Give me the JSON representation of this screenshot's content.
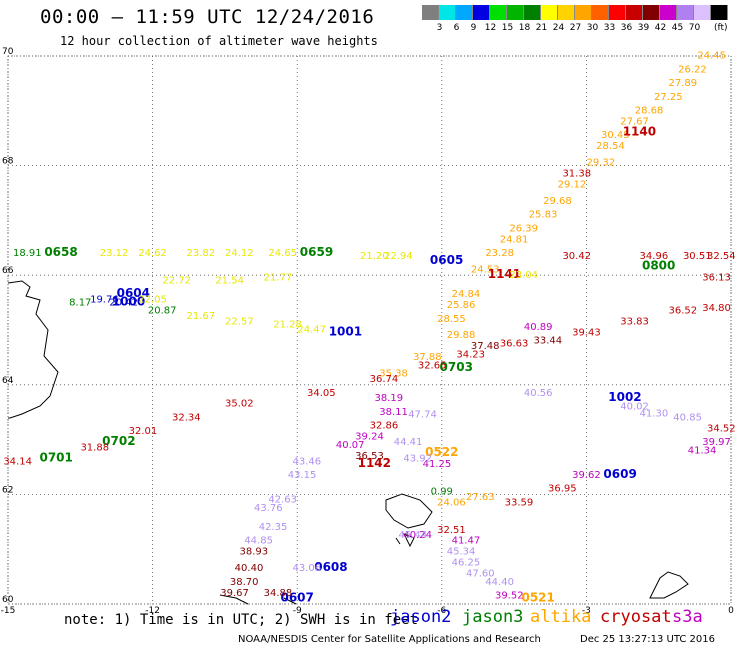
{
  "header": {
    "title": "00:00 – 11:59 UTC 12/24/2016",
    "subtitle": "12 hour collection of altimeter wave heights"
  },
  "colorbar": {
    "colors": [
      "#7f7f7f",
      "#00e5e5",
      "#00a8ff",
      "#0000e0",
      "#00e000",
      "#00b400",
      "#008000",
      "#ffff00",
      "#ffd200",
      "#ffa500",
      "#ff6000",
      "#ff0000",
      "#c80000",
      "#800000",
      "#cc00cc",
      "#b080f0",
      "#ddc0ff",
      "#000000"
    ],
    "labels": [
      "3",
      "6",
      "9",
      "12",
      "15",
      "18",
      "21",
      "24",
      "27",
      "30",
      "33",
      "36",
      "39",
      "42",
      "45",
      "70"
    ],
    "units": "(ft)"
  },
  "chart_data": {
    "type": "scatter",
    "x_axis": {
      "ticks": [
        "-15",
        "-12",
        "-9",
        "-6",
        "-3",
        "0"
      ],
      "range": [
        -15,
        0
      ]
    },
    "y_axis": {
      "ticks": [
        "60",
        "62",
        "64",
        "66",
        "68",
        "70"
      ],
      "range": [
        60,
        70
      ]
    },
    "grid": true,
    "legend": "bottom",
    "series": [
      {
        "name": "jason2",
        "color": "#0000d0",
        "points": [
          {
            "lon": -13.0,
            "lat": 65.5,
            "v": "19.76"
          },
          {
            "lon": -12.6,
            "lat": 65.45,
            "v": "20.42"
          },
          {
            "lon": -12.4,
            "lat": 65.6,
            "v": "0604"
          },
          {
            "lon": -12.5,
            "lat": 65.45,
            "v": "1000"
          },
          {
            "lon": -8.0,
            "lat": 64.9,
            "v": "1001"
          },
          {
            "lon": -5.9,
            "lat": 66.2,
            "v": "0605"
          },
          {
            "lon": -2.2,
            "lat": 63.7,
            "v": "1002"
          },
          {
            "lon": -2.3,
            "lat": 62.3,
            "v": "0609"
          },
          {
            "lon": -8.3,
            "lat": 60.6,
            "v": "0608"
          },
          {
            "lon": -9.0,
            "lat": 60.05,
            "v": "0607"
          }
        ]
      },
      {
        "name": "jason3",
        "color": "#008000",
        "points": [
          {
            "lon": -14.6,
            "lat": 66.35,
            "v": "18.91"
          },
          {
            "lon": -13.9,
            "lat": 66.35,
            "v": "0658"
          },
          {
            "lon": -8.6,
            "lat": 66.35,
            "v": "0659"
          },
          {
            "lon": -11.8,
            "lat": 65.3,
            "v": "20.87"
          },
          {
            "lon": -13.5,
            "lat": 65.45,
            "v": "8.17"
          },
          {
            "lon": -1.5,
            "lat": 66.1,
            "v": "0800"
          },
          {
            "lon": -5.7,
            "lat": 64.25,
            "v": "0703"
          },
          {
            "lon": -12.7,
            "lat": 62.9,
            "v": "0702"
          },
          {
            "lon": -14.0,
            "lat": 62.6,
            "v": "0701"
          },
          {
            "lon": -6.0,
            "lat": 62.0,
            "v": "0.99"
          }
        ]
      },
      {
        "name": "altika",
        "color": "#ffa500",
        "points": [
          {
            "lon": -0.4,
            "lat": 69.95,
            "v": "24.45"
          },
          {
            "lon": -0.8,
            "lat": 69.7,
            "v": "26.22"
          },
          {
            "lon": -1.0,
            "lat": 69.45,
            "v": "27.89"
          },
          {
            "lon": -1.3,
            "lat": 69.2,
            "v": "27.25"
          },
          {
            "lon": -1.7,
            "lat": 68.95,
            "v": "28.68"
          },
          {
            "lon": -2.0,
            "lat": 68.75,
            "v": "27.67"
          },
          {
            "lon": -2.4,
            "lat": 68.5,
            "v": "30.45"
          },
          {
            "lon": -2.5,
            "lat": 68.3,
            "v": "28.54"
          },
          {
            "lon": -2.7,
            "lat": 68.0,
            "v": "29.32"
          },
          {
            "lon": -3.3,
            "lat": 67.6,
            "v": "29.12"
          },
          {
            "lon": -3.6,
            "lat": 67.3,
            "v": "29.68"
          },
          {
            "lon": -3.9,
            "lat": 67.05,
            "v": "25.83"
          },
          {
            "lon": -4.3,
            "lat": 66.8,
            "v": "26.39"
          },
          {
            "lon": -4.5,
            "lat": 66.6,
            "v": "24.81"
          },
          {
            "lon": -4.8,
            "lat": 66.35,
            "v": "23.28"
          },
          {
            "lon": -5.1,
            "lat": 66.05,
            "v": "24.53"
          },
          {
            "lon": -5.5,
            "lat": 65.6,
            "v": "24.84"
          },
          {
            "lon": -5.6,
            "lat": 65.4,
            "v": "25.86"
          },
          {
            "lon": -5.8,
            "lat": 65.15,
            "v": "28.55"
          },
          {
            "lon": -5.6,
            "lat": 64.85,
            "v": "29.88"
          },
          {
            "lon": -6.3,
            "lat": 64.45,
            "v": "37.88"
          },
          {
            "lon": -7.0,
            "lat": 64.15,
            "v": "35.38"
          },
          {
            "lon": -6.0,
            "lat": 62.7,
            "v": "0522"
          },
          {
            "lon": -5.8,
            "lat": 61.8,
            "v": "24.06"
          },
          {
            "lon": -5.2,
            "lat": 61.9,
            "v": "27.63"
          },
          {
            "lon": -4.0,
            "lat": 60.05,
            "v": "0521"
          }
        ]
      },
      {
        "name": "cryosat",
        "color": "#c00000",
        "points": [
          {
            "lon": -1.9,
            "lat": 68.55,
            "v": "1140"
          },
          {
            "lon": -3.2,
            "lat": 67.8,
            "v": "31.38"
          },
          {
            "lon": -4.7,
            "lat": 65.95,
            "v": "1141"
          },
          {
            "lon": -3.2,
            "lat": 66.3,
            "v": "30.42"
          },
          {
            "lon": -1.6,
            "lat": 66.3,
            "v": "34.96"
          },
          {
            "lon": -0.7,
            "lat": 66.3,
            "v": "30.51"
          },
          {
            "lon": -0.2,
            "lat": 66.3,
            "v": "32.54"
          },
          {
            "lon": -0.3,
            "lat": 65.9,
            "v": "36.13"
          },
          {
            "lon": -0.3,
            "lat": 65.35,
            "v": "34.80"
          },
          {
            "lon": -1.0,
            "lat": 65.3,
            "v": "36.52"
          },
          {
            "lon": -2.0,
            "lat": 65.1,
            "v": "33.83"
          },
          {
            "lon": -3.0,
            "lat": 64.9,
            "v": "39.43"
          },
          {
            "lon": -4.5,
            "lat": 64.7,
            "v": "36.63"
          },
          {
            "lon": -5.4,
            "lat": 64.5,
            "v": "34.23"
          },
          {
            "lon": -6.2,
            "lat": 64.3,
            "v": "32.65"
          },
          {
            "lon": -7.2,
            "lat": 64.05,
            "v": "36.74"
          },
          {
            "lon": -8.5,
            "lat": 63.8,
            "v": "34.05"
          },
          {
            "lon": -10.2,
            "lat": 63.6,
            "v": "35.02"
          },
          {
            "lon": -11.3,
            "lat": 63.35,
            "v": "32.34"
          },
          {
            "lon": -12.2,
            "lat": 63.1,
            "v": "32.01"
          },
          {
            "lon": -13.2,
            "lat": 62.8,
            "v": "31.88"
          },
          {
            "lon": -14.8,
            "lat": 62.55,
            "v": "34.14"
          },
          {
            "lon": -7.2,
            "lat": 63.2,
            "v": "32.86"
          },
          {
            "lon": -7.4,
            "lat": 62.5,
            "v": "1142"
          },
          {
            "lon": -3.5,
            "lat": 62.05,
            "v": "36.95"
          },
          {
            "lon": -4.4,
            "lat": 61.8,
            "v": "33.59"
          },
          {
            "lon": -5.8,
            "lat": 61.3,
            "v": "32.51"
          },
          {
            "lon": -0.2,
            "lat": 63.15,
            "v": "34.52"
          }
        ]
      },
      {
        "name": "s3a",
        "color": "#c000c0",
        "points": [
          {
            "lon": -7.1,
            "lat": 63.7,
            "v": "38.19"
          },
          {
            "lon": -7.0,
            "lat": 63.45,
            "v": "38.11"
          },
          {
            "lon": -7.5,
            "lat": 63.0,
            "v": "39.24"
          },
          {
            "lon": -7.9,
            "lat": 62.85,
            "v": "40.07"
          },
          {
            "lon": -5.5,
            "lat": 61.1,
            "v": "41.47"
          },
          {
            "lon": -6.1,
            "lat": 62.5,
            "v": "41.25"
          },
          {
            "lon": -6.5,
            "lat": 61.2,
            "v": "40.24"
          },
          {
            "lon": -4.6,
            "lat": 60.1,
            "v": "39.52"
          },
          {
            "lon": -3.0,
            "lat": 62.3,
            "v": "39.62"
          },
          {
            "lon": -0.6,
            "lat": 62.75,
            "v": "41.34"
          },
          {
            "lon": -0.3,
            "lat": 62.9,
            "v": "39.97"
          },
          {
            "lon": -4.0,
            "lat": 65.0,
            "v": "40.89"
          }
        ]
      },
      {
        "name": "",
        "color": "#b090f0",
        "points": [
          {
            "lon": -2.0,
            "lat": 63.55,
            "v": "40.02"
          },
          {
            "lon": -1.6,
            "lat": 63.42,
            "v": "41.30"
          },
          {
            "lon": -0.9,
            "lat": 63.35,
            "v": "40.85"
          },
          {
            "lon": -4.0,
            "lat": 63.8,
            "v": "40.56"
          },
          {
            "lon": -6.4,
            "lat": 63.4,
            "v": "47.74"
          },
          {
            "lon": -6.7,
            "lat": 62.9,
            "v": "44.41"
          },
          {
            "lon": -6.5,
            "lat": 62.6,
            "v": "43.92"
          },
          {
            "lon": -8.8,
            "lat": 62.55,
            "v": "43.46"
          },
          {
            "lon": -8.9,
            "lat": 62.3,
            "v": "43.15"
          },
          {
            "lon": -9.3,
            "lat": 61.85,
            "v": "42.63"
          },
          {
            "lon": -9.6,
            "lat": 61.7,
            "v": "43.76"
          },
          {
            "lon": -9.5,
            "lat": 61.35,
            "v": "42.35"
          },
          {
            "lon": -9.8,
            "lat": 61.1,
            "v": "44.85"
          },
          {
            "lon": -8.8,
            "lat": 60.6,
            "v": "43.06"
          },
          {
            "lon": -5.6,
            "lat": 60.9,
            "v": "45.34"
          },
          {
            "lon": -5.5,
            "lat": 60.7,
            "v": "46.25"
          },
          {
            "lon": -5.2,
            "lat": 60.5,
            "v": "47.60"
          },
          {
            "lon": -4.8,
            "lat": 60.35,
            "v": "44.40"
          },
          {
            "lon": -6.6,
            "lat": 61.2,
            "v": "45.44"
          }
        ]
      },
      {
        "name": "",
        "color": "#800000",
        "points": [
          {
            "lon": -9.9,
            "lat": 60.9,
            "v": "38.93"
          },
          {
            "lon": -10.0,
            "lat": 60.6,
            "v": "40.40"
          },
          {
            "lon": -10.1,
            "lat": 60.35,
            "v": "38.70"
          },
          {
            "lon": -10.3,
            "lat": 60.15,
            "v": "39.67"
          },
          {
            "lon": -9.4,
            "lat": 60.15,
            "v": "34.88"
          },
          {
            "lon": -7.5,
            "lat": 62.65,
            "v": "36.53"
          },
          {
            "lon": -3.8,
            "lat": 64.75,
            "v": "33.44"
          },
          {
            "lon": -5.1,
            "lat": 64.65,
            "v": "37.48"
          }
        ]
      },
      {
        "name": "",
        "color": "#e8e800",
        "points": [
          {
            "lon": -12.8,
            "lat": 66.35,
            "v": "23.12"
          },
          {
            "lon": -12.0,
            "lat": 66.35,
            "v": "24.62"
          },
          {
            "lon": -11.0,
            "lat": 66.35,
            "v": "23.82"
          },
          {
            "lon": -10.2,
            "lat": 66.35,
            "v": "24.12"
          },
          {
            "lon": -9.3,
            "lat": 66.35,
            "v": "24.65"
          },
          {
            "lon": -11.5,
            "lat": 65.85,
            "v": "22.72"
          },
          {
            "lon": -10.4,
            "lat": 65.85,
            "v": "21.54"
          },
          {
            "lon": -9.4,
            "lat": 65.9,
            "v": "21.77"
          },
          {
            "lon": -12.0,
            "lat": 65.5,
            "v": "22.05"
          },
          {
            "lon": -11.0,
            "lat": 65.2,
            "v": "21.67"
          },
          {
            "lon": -10.2,
            "lat": 65.1,
            "v": "22.57"
          },
          {
            "lon": -9.2,
            "lat": 65.05,
            "v": "21.28"
          },
          {
            "lon": -8.7,
            "lat": 64.95,
            "v": "24.47"
          },
          {
            "lon": -7.4,
            "lat": 66.3,
            "v": "21.20"
          },
          {
            "lon": -6.9,
            "lat": 66.3,
            "v": "22.94"
          },
          {
            "lon": -4.3,
            "lat": 65.95,
            "v": "23.04"
          }
        ]
      }
    ]
  },
  "note": "note: 1) Time is in UTC; 2) SWH is in feet",
  "legend": [
    {
      "label": "jason2",
      "color": "#0000d0"
    },
    {
      "label": "jason3",
      "color": "#008000"
    },
    {
      "label": "altika",
      "color": "#ffa500"
    },
    {
      "label": "cryosat",
      "color": "#c00000"
    },
    {
      "label": "s3a",
      "color": "#c000c0"
    }
  ],
  "footer": {
    "credit": "NOAA/NESDIS Center for Satellite Applications and Research",
    "timestamp": "Dec 25 13:27:13 UTC 2016"
  }
}
